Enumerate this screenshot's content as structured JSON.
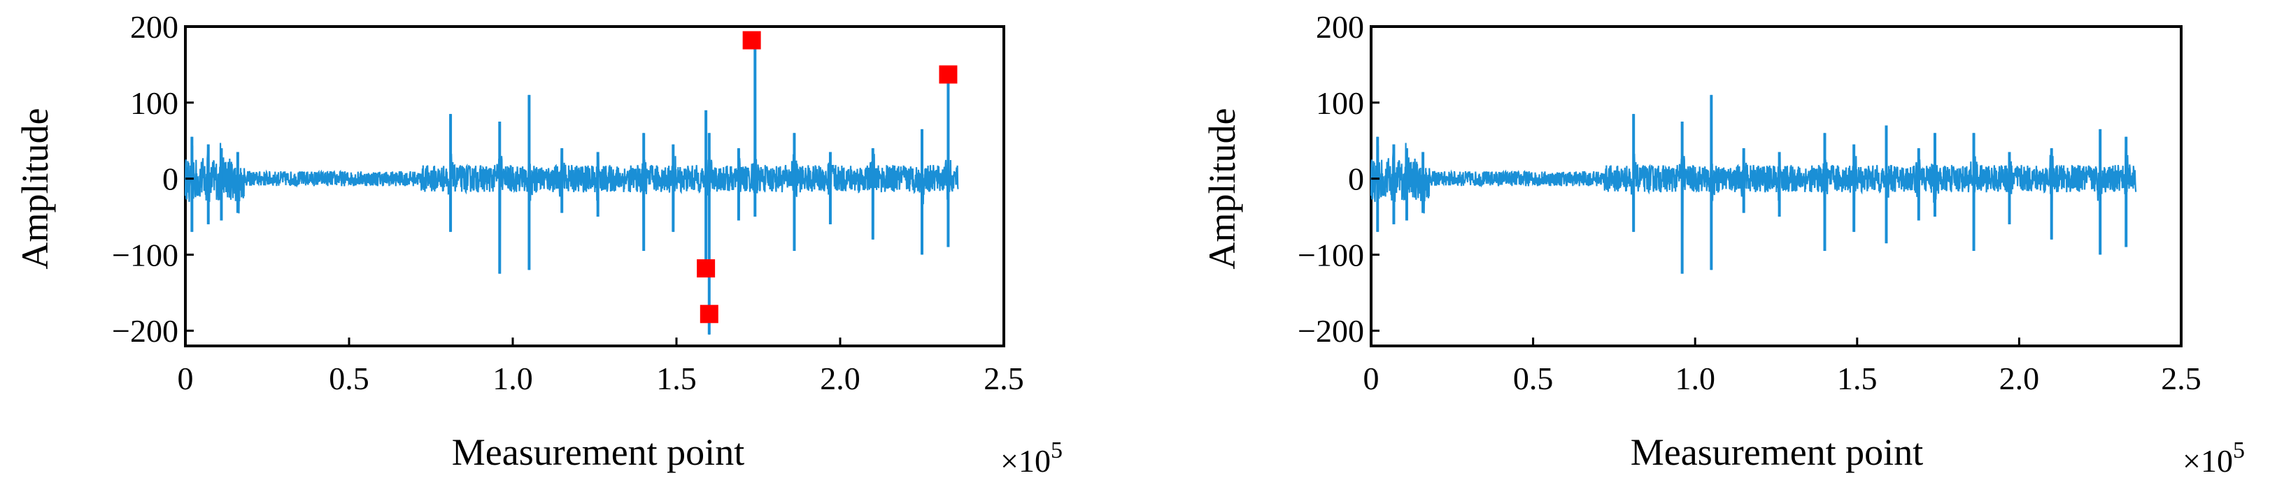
{
  "chart_data": [
    {
      "type": "line",
      "title": "",
      "xlabel": "Measurement point",
      "ylabel": "Amplitude",
      "x_multiplier_label": "×10^5",
      "x_multiplier_base": "×10",
      "x_multiplier_exp": "5",
      "xlim": [
        0,
        2.5
      ],
      "ylim": [
        -220,
        200
      ],
      "x_ticks": [
        0,
        0.5,
        1.0,
        1.5,
        2.0,
        2.5
      ],
      "x_tick_labels": [
        "0",
        "0.5",
        "1.0",
        "1.5",
        "2.0",
        "2.5"
      ],
      "y_ticks": [
        200,
        100,
        0,
        -100,
        -200
      ],
      "y_tick_labels": [
        "200",
        "100",
        "0",
        "−100",
        "−200"
      ],
      "x_data_end": 2.36,
      "series_color": "#1a8fd6",
      "marker_color": "#ff0000",
      "spikes": [
        {
          "x": 0.02,
          "up": 55,
          "down": -70
        },
        {
          "x": 0.07,
          "up": 45,
          "down": -60
        },
        {
          "x": 0.11,
          "up": 40,
          "down": -55
        },
        {
          "x": 0.16,
          "up": 35,
          "down": -45
        },
        {
          "x": 0.81,
          "up": 85,
          "down": -70
        },
        {
          "x": 0.96,
          "up": 75,
          "down": -125
        },
        {
          "x": 1.05,
          "up": 110,
          "down": -120
        },
        {
          "x": 1.15,
          "up": 40,
          "down": -45
        },
        {
          "x": 1.26,
          "up": 35,
          "down": -50
        },
        {
          "x": 1.4,
          "up": 60,
          "down": -95
        },
        {
          "x": 1.49,
          "up": 45,
          "down": -70
        },
        {
          "x": 1.59,
          "up": 90,
          "down": -120
        },
        {
          "x": 1.6,
          "up": 60,
          "down": -205
        },
        {
          "x": 1.69,
          "up": 40,
          "down": -55
        },
        {
          "x": 1.74,
          "up": 185,
          "down": -50
        },
        {
          "x": 1.86,
          "up": 60,
          "down": -95
        },
        {
          "x": 1.97,
          "up": 35,
          "down": -60
        },
        {
          "x": 2.1,
          "up": 40,
          "down": -80
        },
        {
          "x": 2.25,
          "up": 65,
          "down": -100
        },
        {
          "x": 2.33,
          "up": 140,
          "down": -90
        }
      ],
      "markers": [
        {
          "x": 1.73,
          "y": 182
        },
        {
          "x": 2.33,
          "y": 137
        },
        {
          "x": 1.59,
          "y": -118
        },
        {
          "x": 1.6,
          "y": -178
        }
      ]
    },
    {
      "type": "line",
      "title": "",
      "xlabel": "Measurement point",
      "ylabel": "Amplitude",
      "x_multiplier_label": "×10^5",
      "x_multiplier_base": "×10",
      "x_multiplier_exp": "5",
      "xlim": [
        0,
        2.5
      ],
      "ylim": [
        -220,
        200
      ],
      "x_ticks": [
        0,
        0.5,
        1.0,
        1.5,
        2.0,
        2.5
      ],
      "x_tick_labels": [
        "0",
        "0.5",
        "1.0",
        "1.5",
        "2.0",
        "2.5"
      ],
      "y_ticks": [
        200,
        100,
        0,
        -100,
        -200
      ],
      "y_tick_labels": [
        "200",
        "100",
        "0",
        "−100",
        "−200"
      ],
      "x_data_end": 2.36,
      "series_color": "#1a8fd6",
      "spikes": [
        {
          "x": 0.02,
          "up": 55,
          "down": -70
        },
        {
          "x": 0.07,
          "up": 45,
          "down": -60
        },
        {
          "x": 0.11,
          "up": 40,
          "down": -55
        },
        {
          "x": 0.16,
          "up": 35,
          "down": -45
        },
        {
          "x": 0.81,
          "up": 85,
          "down": -70
        },
        {
          "x": 0.96,
          "up": 75,
          "down": -125
        },
        {
          "x": 1.05,
          "up": 110,
          "down": -120
        },
        {
          "x": 1.15,
          "up": 40,
          "down": -45
        },
        {
          "x": 1.26,
          "up": 35,
          "down": -50
        },
        {
          "x": 1.4,
          "up": 60,
          "down": -95
        },
        {
          "x": 1.49,
          "up": 45,
          "down": -70
        },
        {
          "x": 1.59,
          "up": 70,
          "down": -85
        },
        {
          "x": 1.69,
          "up": 40,
          "down": -55
        },
        {
          "x": 1.74,
          "up": 60,
          "down": -50
        },
        {
          "x": 1.86,
          "up": 60,
          "down": -95
        },
        {
          "x": 1.97,
          "up": 35,
          "down": -60
        },
        {
          "x": 2.1,
          "up": 40,
          "down": -80
        },
        {
          "x": 2.25,
          "up": 65,
          "down": -100
        },
        {
          "x": 2.33,
          "up": 55,
          "down": -90
        }
      ],
      "markers": []
    }
  ]
}
